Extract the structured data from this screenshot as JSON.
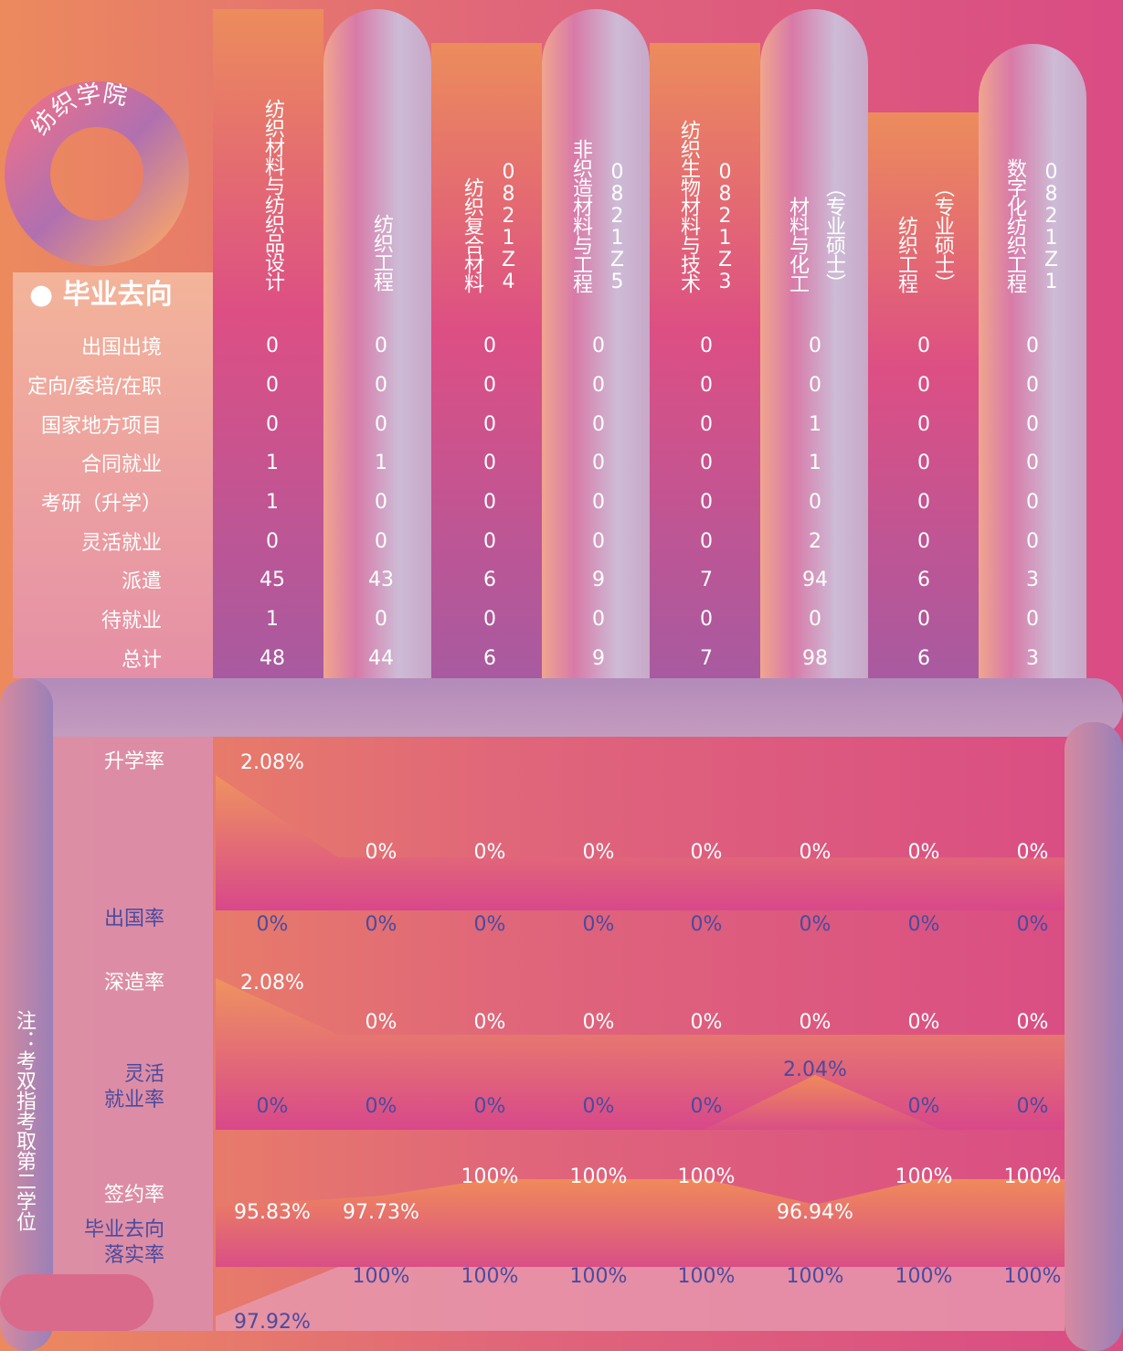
{
  "school": "纺织学院",
  "section": "毕业去向",
  "majors": [
    {
      "name": "纺织材料与纺织品设计"
    },
    {
      "name": "纺织工程"
    },
    {
      "name": "纺织复合材料",
      "code": "0821Z4"
    },
    {
      "name": "非织造材料与工程",
      "code": "0821Z5"
    },
    {
      "name": "纺织生物材料与技术",
      "code": "0821Z3"
    },
    {
      "name": "材料与化工",
      "code": "（专业硕士）"
    },
    {
      "name": "纺织工程",
      "code": "（专业硕士）"
    },
    {
      "name": "数字化纺织工程",
      "code": "0821Z1"
    }
  ],
  "rows": [
    {
      "label": "出国出境",
      "values": [
        0,
        0,
        0,
        0,
        0,
        0,
        0,
        0
      ]
    },
    {
      "label": "定向/委培/在职",
      "values": [
        0,
        0,
        0,
        0,
        0,
        0,
        0,
        0
      ]
    },
    {
      "label": "国家地方项目",
      "values": [
        0,
        0,
        0,
        0,
        0,
        1,
        0,
        0
      ]
    },
    {
      "label": "合同就业",
      "values": [
        1,
        1,
        0,
        0,
        0,
        1,
        0,
        0
      ]
    },
    {
      "label": "考研（升学）",
      "values": [
        1,
        0,
        0,
        0,
        0,
        0,
        0,
        0
      ]
    },
    {
      "label": "灵活就业",
      "values": [
        0,
        0,
        0,
        0,
        0,
        2,
        0,
        0
      ]
    },
    {
      "label": "派遣",
      "values": [
        45,
        43,
        6,
        9,
        7,
        94,
        6,
        3
      ]
    },
    {
      "label": "待就业",
      "values": [
        1,
        0,
        0,
        0,
        0,
        0,
        0,
        0
      ]
    },
    {
      "label": "总计",
      "values": [
        48,
        44,
        6,
        9,
        7,
        98,
        6,
        3
      ]
    }
  ],
  "rates": [
    {
      "label": [
        "升学率"
      ],
      "values": [
        "2.08%",
        "0%",
        "0%",
        "0%",
        "0%",
        "0%",
        "0%",
        "0%"
      ]
    },
    {
      "label": [
        "出国率"
      ],
      "values": [
        "0%",
        "0%",
        "0%",
        "0%",
        "0%",
        "0%",
        "0%",
        "0%"
      ]
    },
    {
      "label": [
        "深造率"
      ],
      "values": [
        "2.08%",
        "0%",
        "0%",
        "0%",
        "0%",
        "0%",
        "0%",
        "0%"
      ]
    },
    {
      "label": [
        "灵活",
        "就业率"
      ],
      "values": [
        "0%",
        "0%",
        "0%",
        "0%",
        "0%",
        "2.04%",
        "0%",
        "0%"
      ]
    },
    {
      "label": [
        "签约率"
      ],
      "values": [
        "95.83%",
        "97.73%",
        "100%",
        "100%",
        "100%",
        "96.94%",
        "100%",
        "100%"
      ]
    },
    {
      "label": [
        "毕业去向",
        "落实率"
      ],
      "values": [
        "97.92%",
        "100%",
        "100%",
        "100%",
        "100%",
        "100%",
        "100%",
        "100%"
      ]
    }
  ],
  "note": "注：考双指考取第二学位"
}
